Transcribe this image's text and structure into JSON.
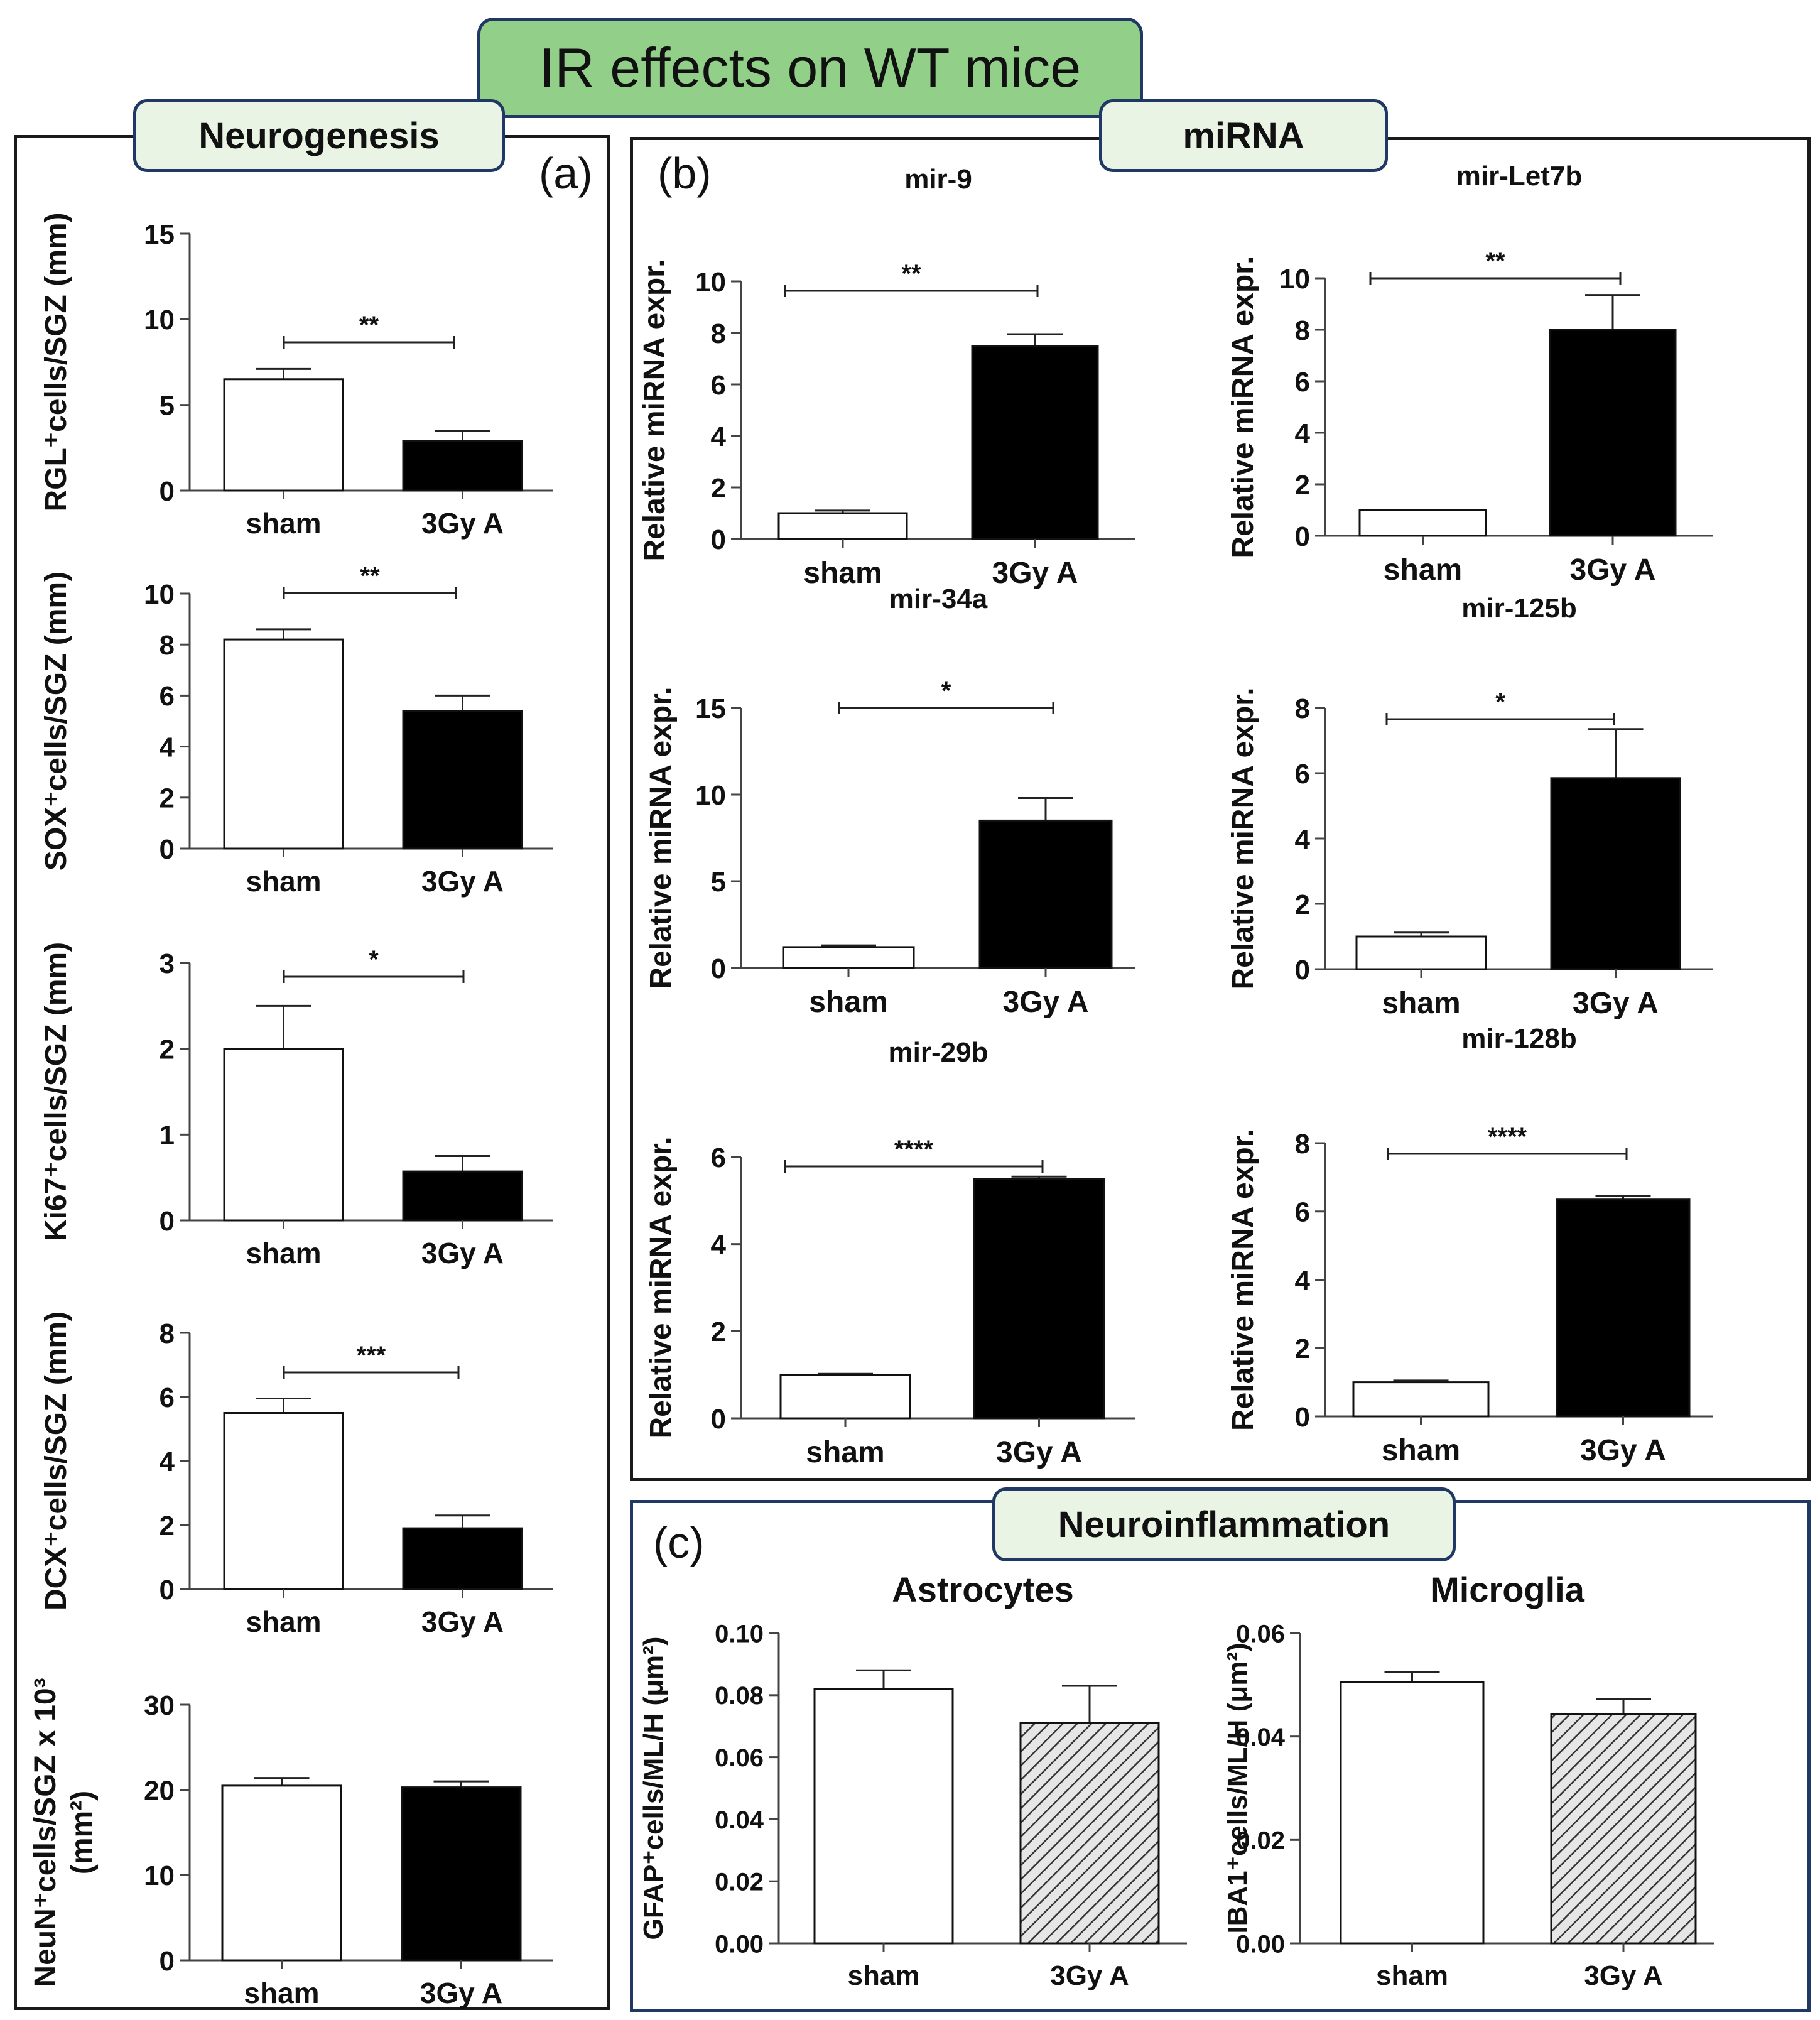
{
  "figure": {
    "title": "IR effects on WT mice",
    "sections": {
      "neurogenesis": "Neurogenesis",
      "mirna": "miRNA",
      "neuroinflammation": "Neuroinflammation"
    },
    "panel_labels": {
      "a": "(a)",
      "b": "(b)",
      "c": "(c)"
    }
  },
  "colors": {
    "title_bg": "#92d08a",
    "tag_bg": "#eaf4e4",
    "border_blue": "#1f3864",
    "bar_filled": "#000000"
  },
  "chart_data": [
    {
      "id": "rgl",
      "type": "bar",
      "panel": "a",
      "title": "",
      "ylabel": "RGL⁺cells/SGZ (mm)",
      "ylabel2": "",
      "categories": [
        "sham",
        "3Gy A"
      ],
      "values": [
        6.5,
        2.9
      ],
      "errors": [
        0.6,
        0.6
      ],
      "ylim": [
        0,
        15
      ],
      "yticks": [
        0,
        5,
        10,
        15
      ],
      "tick_labels": [
        "0",
        "5",
        "10",
        "15"
      ],
      "significance": "**",
      "styles": [
        "open",
        "filled"
      ]
    },
    {
      "id": "sox",
      "type": "bar",
      "panel": "a",
      "title": "",
      "ylabel": "SOX⁺cells/SGZ (mm)",
      "ylabel2": "",
      "categories": [
        "sham",
        "3Gy A"
      ],
      "values": [
        8.2,
        5.4
      ],
      "errors": [
        0.4,
        0.6
      ],
      "ylim": [
        0,
        10
      ],
      "yticks": [
        0,
        2,
        4,
        6,
        8,
        10
      ],
      "tick_labels": [
        "0",
        "2",
        "4",
        "6",
        "8",
        "10"
      ],
      "significance": "**",
      "styles": [
        "open",
        "filled"
      ]
    },
    {
      "id": "ki67",
      "type": "bar",
      "panel": "a",
      "title": "",
      "ylabel": "Ki67⁺cells/SGZ (mm)",
      "ylabel2": "",
      "categories": [
        "sham",
        "3Gy A"
      ],
      "values": [
        2.0,
        0.57
      ],
      "errors": [
        0.5,
        0.18
      ],
      "ylim": [
        0,
        3
      ],
      "yticks": [
        0,
        1,
        2,
        3
      ],
      "tick_labels": [
        "0",
        "1",
        "2",
        "3"
      ],
      "significance": "*",
      "styles": [
        "open",
        "filled"
      ]
    },
    {
      "id": "dcx",
      "type": "bar",
      "panel": "a",
      "title": "",
      "ylabel": "DCX⁺cells/SGZ (mm)",
      "ylabel2": "",
      "categories": [
        "sham",
        "3Gy A"
      ],
      "values": [
        5.5,
        1.9
      ],
      "errors": [
        0.45,
        0.4
      ],
      "ylim": [
        0,
        8
      ],
      "yticks": [
        0,
        2,
        4,
        6,
        8
      ],
      "tick_labels": [
        "0",
        "2",
        "4",
        "6",
        "8"
      ],
      "significance": "***",
      "styles": [
        "open",
        "filled"
      ]
    },
    {
      "id": "neun",
      "type": "bar",
      "panel": "a",
      "title": "",
      "ylabel": "NeuN⁺cells/SGZ x 10³",
      "ylabel2": "(mm²)",
      "categories": [
        "sham",
        "3Gy A"
      ],
      "values": [
        20.5,
        20.3
      ],
      "errors": [
        0.9,
        0.7
      ],
      "ylim": [
        0,
        30
      ],
      "yticks": [
        0,
        10,
        20,
        30
      ],
      "tick_labels": [
        "0",
        "10",
        "20",
        "30"
      ],
      "significance": "",
      "styles": [
        "open",
        "filled"
      ]
    },
    {
      "id": "mir9",
      "type": "bar",
      "panel": "b",
      "title": "mir-9",
      "ylabel": "Relative miRNA expr.",
      "ylabel2": "",
      "categories": [
        "sham",
        "3Gy A"
      ],
      "values": [
        1.0,
        7.5
      ],
      "errors": [
        0.1,
        0.45
      ],
      "ylim": [
        0,
        10
      ],
      "yticks": [
        0,
        2,
        4,
        6,
        8,
        10
      ],
      "tick_labels": [
        "0",
        "2",
        "4",
        "6",
        "8",
        "10"
      ],
      "significance": "**",
      "styles": [
        "open",
        "filled"
      ]
    },
    {
      "id": "let7b",
      "type": "bar",
      "panel": "b",
      "title": "mir-Let7b",
      "ylabel": "Relative miRNA expr.",
      "ylabel2": "",
      "categories": [
        "sham",
        "3Gy A"
      ],
      "values": [
        1.0,
        8.0
      ],
      "errors": [
        0.0,
        1.35
      ],
      "ylim": [
        0,
        10
      ],
      "yticks": [
        0,
        2,
        4,
        6,
        8,
        10
      ],
      "tick_labels": [
        "0",
        "2",
        "4",
        "6",
        "8",
        "10"
      ],
      "significance": "**",
      "styles": [
        "open",
        "filled"
      ]
    },
    {
      "id": "mir34a",
      "type": "bar",
      "panel": "b",
      "title": "mir-34a",
      "ylabel": "Relative miRNA expr.",
      "ylabel2": "",
      "categories": [
        "sham",
        "3Gy A"
      ],
      "values": [
        1.2,
        8.5
      ],
      "errors": [
        0.1,
        1.3
      ],
      "ylim": [
        0,
        15
      ],
      "yticks": [
        0,
        5,
        10,
        15
      ],
      "tick_labels": [
        "0",
        "5",
        "10",
        "15"
      ],
      "significance": "*",
      "styles": [
        "open",
        "filled"
      ]
    },
    {
      "id": "mir125b",
      "type": "bar",
      "panel": "b",
      "title": "mir-125b",
      "ylabel": "Relative miRNA expr.",
      "ylabel2": "",
      "categories": [
        "sham",
        "3Gy A"
      ],
      "values": [
        1.0,
        5.85
      ],
      "errors": [
        0.12,
        1.5
      ],
      "ylim": [
        0,
        8
      ],
      "yticks": [
        0,
        2,
        4,
        6,
        8
      ],
      "tick_labels": [
        "0",
        "2",
        "4",
        "6",
        "8"
      ],
      "significance": "*",
      "styles": [
        "open",
        "filled"
      ]
    },
    {
      "id": "mir29b",
      "type": "bar",
      "panel": "b",
      "title": "mir-29b",
      "ylabel": "Relative miRNA expr.",
      "ylabel2": "",
      "categories": [
        "sham",
        "3Gy A"
      ],
      "values": [
        1.0,
        5.5
      ],
      "errors": [
        0.02,
        0.05
      ],
      "ylim": [
        0,
        6
      ],
      "yticks": [
        0,
        2,
        4,
        6
      ],
      "tick_labels": [
        "0",
        "2",
        "4",
        "6"
      ],
      "significance": "****",
      "styles": [
        "open",
        "filled"
      ]
    },
    {
      "id": "mir128b",
      "type": "bar",
      "panel": "b",
      "title": "mir-128b",
      "ylabel": "Relative miRNA expr.",
      "ylabel2": "",
      "categories": [
        "sham",
        "3Gy A"
      ],
      "values": [
        1.0,
        6.35
      ],
      "errors": [
        0.05,
        0.1
      ],
      "ylim": [
        0,
        8
      ],
      "yticks": [
        0,
        2,
        4,
        6,
        8
      ],
      "tick_labels": [
        "0",
        "2",
        "4",
        "6",
        "8"
      ],
      "significance": "****",
      "styles": [
        "open",
        "filled"
      ]
    },
    {
      "id": "astro",
      "type": "bar",
      "panel": "c",
      "title": "Astrocytes",
      "ylabel": "GFAP⁺cells/ML/H (μm²)",
      "ylabel2": "",
      "categories": [
        "sham",
        "3Gy A"
      ],
      "values": [
        0.082,
        0.071
      ],
      "errors": [
        0.006,
        0.012
      ],
      "ylim": [
        0,
        0.1
      ],
      "yticks": [
        0,
        0.02,
        0.04,
        0.06,
        0.08,
        0.1
      ],
      "tick_labels": [
        "0.00",
        "0.02",
        "0.04",
        "0.06",
        "0.08",
        "0.10"
      ],
      "significance": "",
      "styles": [
        "open",
        "hatched"
      ]
    },
    {
      "id": "micro",
      "type": "bar",
      "panel": "c",
      "title": "Microglia",
      "ylabel": "IBA1⁺cells/ML/H (μm²)",
      "ylabel2": "",
      "categories": [
        "sham",
        "3Gy A"
      ],
      "values": [
        0.0505,
        0.0443
      ],
      "errors": [
        0.002,
        0.003
      ],
      "ylim": [
        0,
        0.06
      ],
      "yticks": [
        0,
        0.02,
        0.04,
        0.06
      ],
      "tick_labels": [
        "0.00",
        "0.02",
        "0.04",
        "0.06"
      ],
      "significance": "",
      "styles": [
        "open",
        "hatched"
      ]
    }
  ]
}
